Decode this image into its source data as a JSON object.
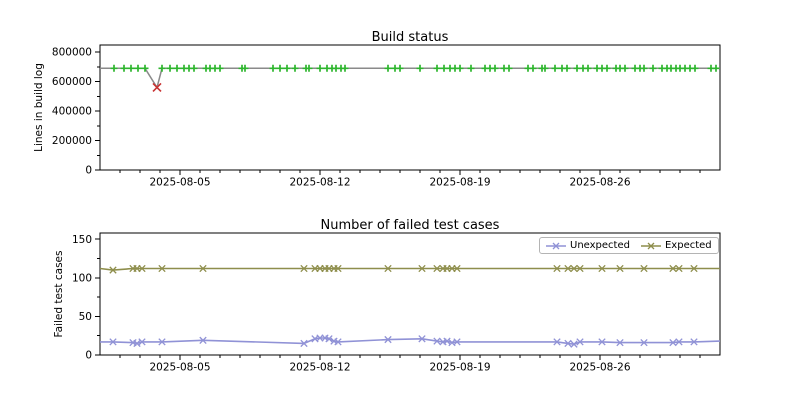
{
  "chart_data": [
    {
      "id": "build_status",
      "type": "line",
      "title": "Build status",
      "ylabel": "Lines in build log",
      "xlabel": "",
      "x_axis": {
        "start_date": "2025-08-01",
        "xlim_days": [
          0,
          31
        ],
        "major_ticks": [
          {
            "day": 4,
            "label": "2025-08-05"
          },
          {
            "day": 11,
            "label": "2025-08-12"
          },
          {
            "day": 18,
            "label": "2025-08-19"
          },
          {
            "day": 25,
            "label": "2025-08-26"
          }
        ],
        "minor_tick_interval_days": 1
      },
      "y_axis": {
        "ylim": [
          0,
          848000
        ],
        "major_ticks": [
          {
            "value": 0,
            "label": "0"
          },
          {
            "value": 200000,
            "label": "200000"
          },
          {
            "value": 400000,
            "label": "400000"
          },
          {
            "value": 600000,
            "label": "600000"
          },
          {
            "value": 800000,
            "label": "800000"
          }
        ],
        "minor_ticks": [
          100000,
          300000,
          500000,
          700000
        ]
      },
      "grid": false,
      "line": {
        "name": "build-log-size-line",
        "color": "#8a8a8a",
        "width": 1.5,
        "points": [
          [
            0,
            690000
          ],
          [
            2.25,
            690000
          ],
          [
            2.85,
            560000
          ],
          [
            3.1,
            690000
          ],
          [
            31,
            690000
          ]
        ]
      },
      "markers": [
        {
          "name": "build-success",
          "symbol": "plus",
          "color": "#2db52d",
          "size": 3.5,
          "stroke_width": 1.7,
          "value": 690000,
          "days": [
            0.7,
            1.2,
            1.55,
            1.9,
            2.25,
            3.1,
            3.5,
            3.85,
            4.2,
            4.45,
            4.7,
            5.3,
            5.5,
            5.75,
            6.0,
            7.1,
            7.25,
            8.65,
            9.0,
            9.35,
            9.75,
            10.3,
            10.45,
            11.0,
            11.35,
            11.6,
            11.8,
            12.05,
            12.25,
            14.4,
            14.75,
            15.0,
            16.0,
            16.85,
            17.2,
            17.5,
            17.75,
            18.0,
            18.55,
            19.25,
            19.5,
            19.75,
            20.2,
            20.45,
            21.4,
            21.65,
            22.1,
            22.25,
            22.75,
            23.1,
            23.35,
            23.85,
            24.15,
            24.4,
            24.85,
            25.1,
            25.35,
            25.8,
            26.0,
            26.25,
            26.75,
            27.0,
            27.2,
            27.65,
            28.1,
            28.35,
            28.55,
            28.8,
            29.0,
            29.25,
            29.5,
            29.75,
            30.55,
            30.8
          ]
        },
        {
          "name": "build-failure",
          "symbol": "x",
          "color": "#c83232",
          "size": 4,
          "stroke_width": 1.6,
          "points": [
            [
              2.85,
              560000
            ]
          ]
        }
      ]
    },
    {
      "id": "failed_tests",
      "type": "line",
      "title": "Number of failed test cases",
      "ylabel": "Failed test cases",
      "xlabel": "",
      "x_axis": {
        "start_date": "2025-08-01",
        "xlim_days": [
          0,
          31
        ],
        "major_ticks": [
          {
            "day": 4,
            "label": "2025-08-05"
          },
          {
            "day": 11,
            "label": "2025-08-12"
          },
          {
            "day": 18,
            "label": "2025-08-19"
          },
          {
            "day": 25,
            "label": "2025-08-26"
          }
        ],
        "minor_tick_interval_days": 1
      },
      "y_axis": {
        "ylim": [
          0,
          158
        ],
        "major_ticks": [
          {
            "value": 0,
            "label": "0"
          },
          {
            "value": 50,
            "label": "50"
          },
          {
            "value": 100,
            "label": "100"
          },
          {
            "value": 150,
            "label": "150"
          }
        ],
        "minor_ticks": [
          25,
          75,
          125
        ]
      },
      "grid": false,
      "legend": {
        "loc": "upper right",
        "entries": [
          {
            "label": "Unexpected",
            "color": "#9092d6",
            "symbol": "x"
          },
          {
            "label": "Expected",
            "color": "#8e8e4c",
            "symbol": "x"
          }
        ]
      },
      "series": [
        {
          "name": "Unexpected",
          "color": "#9092d6",
          "width": 1.6,
          "marker": "x",
          "marker_size": 3.2,
          "marker_stroke_width": 1.3,
          "days": [
            0.65,
            1.65,
            1.85,
            2.1,
            3.1,
            5.15,
            10.2,
            10.75,
            11.0,
            11.25,
            11.45,
            11.7,
            11.9,
            14.4,
            16.1,
            16.85,
            17.15,
            17.35,
            17.6,
            17.85,
            22.85,
            23.4,
            23.7,
            24.0,
            25.1,
            26.0,
            27.2,
            28.65,
            28.95,
            29.7
          ],
          "values": [
            17,
            16,
            15,
            17,
            17,
            19,
            15,
            21,
            22,
            22,
            21,
            18,
            17,
            20,
            21,
            18,
            17,
            18,
            16,
            17,
            17,
            15,
            14,
            17,
            17,
            16,
            16,
            16,
            17,
            17
          ],
          "edge_left": [
            0,
            17
          ],
          "edge_right": [
            31,
            18
          ]
        },
        {
          "name": "Expected",
          "color": "#8e8e4c",
          "width": 1.6,
          "marker": "x",
          "marker_size": 3.2,
          "marker_stroke_width": 1.3,
          "days": [
            0.65,
            1.65,
            1.85,
            2.1,
            3.1,
            5.15,
            10.2,
            10.75,
            11.0,
            11.25,
            11.45,
            11.7,
            11.9,
            14.4,
            16.1,
            16.85,
            17.15,
            17.35,
            17.6,
            17.85,
            22.85,
            23.4,
            23.7,
            24.0,
            25.1,
            26.0,
            27.2,
            28.65,
            28.95,
            29.7
          ],
          "values": [
            110,
            112,
            112,
            112,
            112,
            112,
            112,
            112,
            112,
            112,
            112,
            112,
            112,
            112,
            112,
            112,
            112,
            112,
            112,
            112,
            112,
            112,
            112,
            112,
            112,
            112,
            112,
            112,
            112,
            112
          ],
          "edge_left": [
            0,
            112
          ],
          "edge_right": [
            31,
            112
          ]
        }
      ]
    }
  ]
}
